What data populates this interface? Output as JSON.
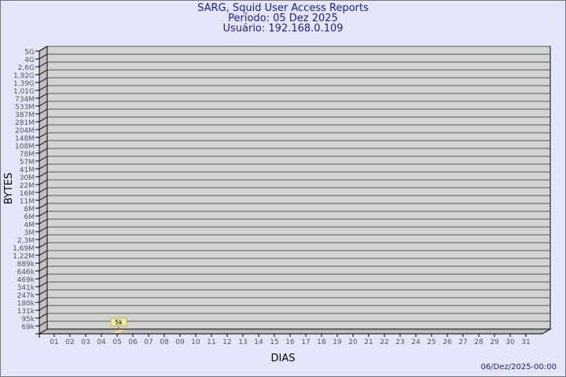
{
  "chart_data": {
    "type": "bar",
    "title": "SARG, Squid User Access Reports",
    "subtitle": [
      "Período: 05 Dez 2025",
      "Usuário: 192.168.0.109"
    ],
    "xlabel": "DIAS",
    "ylabel": "BYTES",
    "categories": [
      "01",
      "02",
      "03",
      "04",
      "05",
      "06",
      "07",
      "08",
      "09",
      "10",
      "11",
      "12",
      "13",
      "14",
      "15",
      "16",
      "17",
      "18",
      "19",
      "20",
      "21",
      "22",
      "23",
      "24",
      "25",
      "26",
      "27",
      "28",
      "29",
      "30",
      "31"
    ],
    "ytick_labels": [
      "5G",
      "4G",
      "2,6G",
      "1,92G",
      "1,39G",
      "1,01G",
      "734M",
      "533M",
      "387M",
      "281M",
      "204M",
      "148M",
      "108M",
      "78M",
      "57M",
      "41M",
      "30M",
      "22M",
      "16M",
      "11M",
      "8M",
      "6M",
      "4M",
      "3M",
      "2,3M",
      "1,69M",
      "1,22M",
      "889k",
      "646k",
      "469k",
      "341k",
      "247k",
      "180k",
      "131k",
      "95k",
      "69k"
    ],
    "series": [
      {
        "values": [
          null,
          null,
          null,
          null,
          5000,
          null,
          null,
          null,
          null,
          null,
          null,
          null,
          null,
          null,
          null,
          null,
          null,
          null,
          null,
          null,
          null,
          null,
          null,
          null,
          null,
          null,
          null,
          null,
          null,
          null,
          null
        ]
      }
    ],
    "data_labels": [
      {
        "category": "05",
        "label": "5k"
      }
    ],
    "grid": true,
    "footer": "06/Dez/2025-00:00",
    "colors": {
      "title": "#1a1a9c",
      "wall": "#d3d3d3",
      "background": "#e6e6fa",
      "bar": "#f5e08a",
      "label_box": "#eeeeaa"
    }
  }
}
